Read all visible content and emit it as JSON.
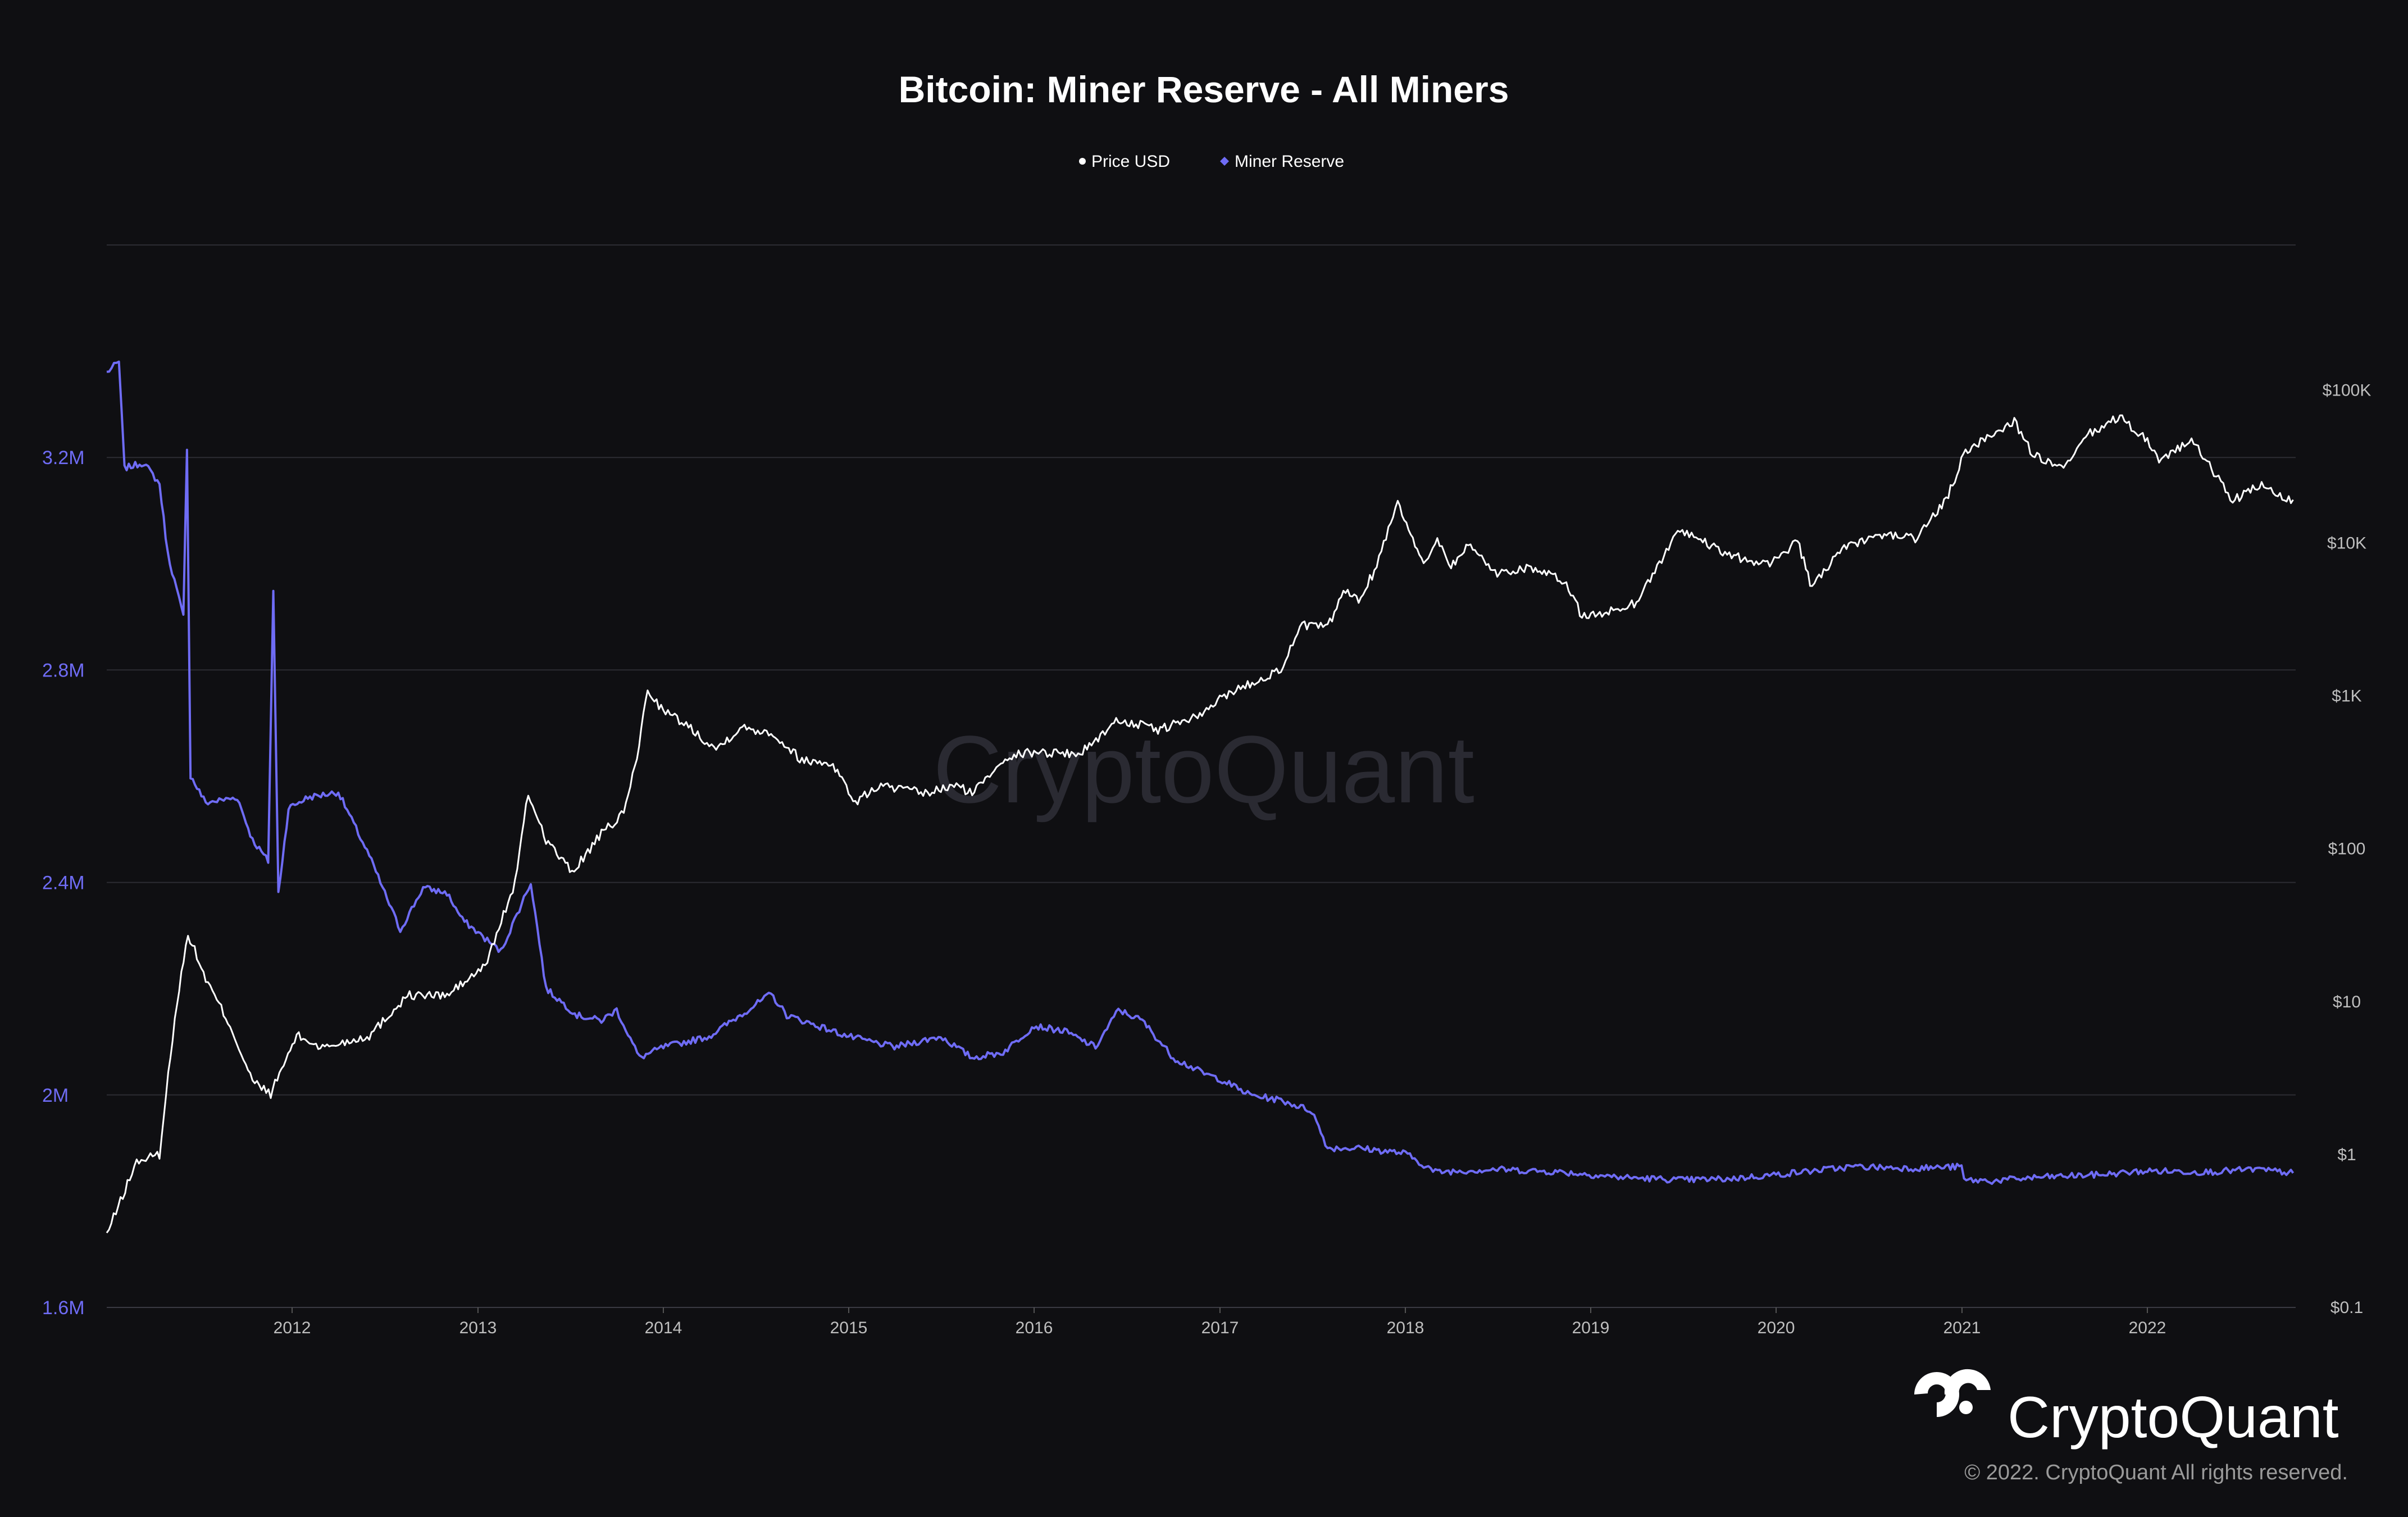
{
  "chart_data": {
    "type": "line",
    "title": "Bitcoin: Miner Reserve - All Miners",
    "legend": {
      "placement": "top-center"
    },
    "series": [
      {
        "name": "Price USD",
        "color": "#ffffff",
        "axis": "right",
        "scale": "log",
        "points": [
          [
            "2011-01-01",
            0.3
          ],
          [
            "2011-03-01",
            0.9
          ],
          [
            "2011-04-15",
            1.0
          ],
          [
            "2011-05-15",
            8
          ],
          [
            "2011-06-10",
            28
          ],
          [
            "2011-07-15",
            14
          ],
          [
            "2011-09-01",
            7
          ],
          [
            "2011-10-15",
            3
          ],
          [
            "2011-11-20",
            2.5
          ],
          [
            "2012-01-10",
            6
          ],
          [
            "2012-03-01",
            5
          ],
          [
            "2012-06-01",
            6
          ],
          [
            "2012-08-15",
            11
          ],
          [
            "2012-11-01",
            11
          ],
          [
            "2013-01-15",
            17
          ],
          [
            "2013-03-15",
            60
          ],
          [
            "2013-04-10",
            230
          ],
          [
            "2013-05-15",
            115
          ],
          [
            "2013-07-05",
            70
          ],
          [
            "2013-09-01",
            125
          ],
          [
            "2013-10-15",
            170
          ],
          [
            "2013-11-10",
            400
          ],
          [
            "2013-12-01",
            1100
          ],
          [
            "2014-01-01",
            800
          ],
          [
            "2014-02-15",
            650
          ],
          [
            "2014-04-15",
            450
          ],
          [
            "2014-06-01",
            620
          ],
          [
            "2014-08-01",
            580
          ],
          [
            "2014-10-01",
            380
          ],
          [
            "2014-12-01",
            360
          ],
          [
            "2015-01-14",
            200
          ],
          [
            "2015-03-01",
            260
          ],
          [
            "2015-06-01",
            230
          ],
          [
            "2015-08-01",
            260
          ],
          [
            "2015-09-01",
            230
          ],
          [
            "2015-11-05",
            400
          ],
          [
            "2016-01-01",
            430
          ],
          [
            "2016-04-01",
            420
          ],
          [
            "2016-06-15",
            700
          ],
          [
            "2016-09-01",
            600
          ],
          [
            "2016-12-01",
            760
          ],
          [
            "2017-01-05",
            1000
          ],
          [
            "2017-03-01",
            1200
          ],
          [
            "2017-05-01",
            1500
          ],
          [
            "2017-06-12",
            2900
          ],
          [
            "2017-08-01",
            2800
          ],
          [
            "2017-09-01",
            4800
          ],
          [
            "2017-10-01",
            4300
          ],
          [
            "2017-11-01",
            6500
          ],
          [
            "2017-12-17",
            19000
          ],
          [
            "2018-02-06",
            7000
          ],
          [
            "2018-03-05",
            11000
          ],
          [
            "2018-04-01",
            7000
          ],
          [
            "2018-05-05",
            9800
          ],
          [
            "2018-07-01",
            6300
          ],
          [
            "2018-09-01",
            7000
          ],
          [
            "2018-11-14",
            5500
          ],
          [
            "2018-12-15",
            3300
          ],
          [
            "2019-02-01",
            3500
          ],
          [
            "2019-04-01",
            4100
          ],
          [
            "2019-06-26",
            12500
          ],
          [
            "2019-08-01",
            10500
          ],
          [
            "2019-10-01",
            8300
          ],
          [
            "2019-12-15",
            7200
          ],
          [
            "2020-02-12",
            10300
          ],
          [
            "2020-03-12",
            5000
          ],
          [
            "2020-05-01",
            8800
          ],
          [
            "2020-08-01",
            11500
          ],
          [
            "2020-10-01",
            10700
          ],
          [
            "2020-12-01",
            19000
          ],
          [
            "2021-01-08",
            40000
          ],
          [
            "2021-02-15",
            48000
          ],
          [
            "2021-04-14",
            63000
          ],
          [
            "2021-05-20",
            38000
          ],
          [
            "2021-07-20",
            30000
          ],
          [
            "2021-09-06",
            51000
          ],
          [
            "2021-11-08",
            67000
          ],
          [
            "2022-01-01",
            47000
          ],
          [
            "2022-01-24",
            35000
          ],
          [
            "2022-03-29",
            47000
          ],
          [
            "2022-05-12",
            29000
          ],
          [
            "2022-06-18",
            19000
          ],
          [
            "2022-08-14",
            24000
          ],
          [
            "2022-09-15",
            20000
          ],
          [
            "2022-10-15",
            19200
          ]
        ]
      },
      {
        "name": "Miner Reserve",
        "color": "#6f6cf5",
        "axis": "left",
        "scale": "linear",
        "points": [
          [
            "2011-01-01",
            3360000
          ],
          [
            "2011-01-25",
            3380000
          ],
          [
            "2011-02-05",
            3180000
          ],
          [
            "2011-03-15",
            3190000
          ],
          [
            "2011-04-15",
            3150000
          ],
          [
            "2011-05-01",
            3020000
          ],
          [
            "2011-06-01",
            2900000
          ],
          [
            "2011-06-08",
            3220000
          ],
          [
            "2011-06-15",
            2600000
          ],
          [
            "2011-07-15",
            2550000
          ],
          [
            "2011-09-15",
            2560000
          ],
          [
            "2011-10-15",
            2480000
          ],
          [
            "2011-11-15",
            2440000
          ],
          [
            "2011-11-25",
            2950000
          ],
          [
            "2011-12-05",
            2380000
          ],
          [
            "2011-12-25",
            2540000
          ],
          [
            "2012-02-01",
            2560000
          ],
          [
            "2012-04-01",
            2570000
          ],
          [
            "2012-06-01",
            2450000
          ],
          [
            "2012-08-01",
            2310000
          ],
          [
            "2012-09-15",
            2390000
          ],
          [
            "2012-11-01",
            2380000
          ],
          [
            "2012-12-01",
            2330000
          ],
          [
            "2013-02-15",
            2270000
          ],
          [
            "2013-04-15",
            2400000
          ],
          [
            "2013-05-15",
            2200000
          ],
          [
            "2013-07-15",
            2150000
          ],
          [
            "2013-09-01",
            2140000
          ],
          [
            "2013-10-01",
            2160000
          ],
          [
            "2013-11-15",
            2070000
          ],
          [
            "2014-01-01",
            2090000
          ],
          [
            "2014-04-01",
            2110000
          ],
          [
            "2014-06-01",
            2150000
          ],
          [
            "2014-08-01",
            2190000
          ],
          [
            "2014-09-01",
            2150000
          ],
          [
            "2014-11-01",
            2130000
          ],
          [
            "2015-01-01",
            2110000
          ],
          [
            "2015-04-01",
            2090000
          ],
          [
            "2015-07-01",
            2110000
          ],
          [
            "2015-09-01",
            2070000
          ],
          [
            "2015-11-01",
            2080000
          ],
          [
            "2016-01-01",
            2130000
          ],
          [
            "2016-03-01",
            2120000
          ],
          [
            "2016-05-01",
            2090000
          ],
          [
            "2016-06-15",
            2160000
          ],
          [
            "2016-08-01",
            2140000
          ],
          [
            "2016-10-01",
            2070000
          ],
          [
            "2016-12-01",
            2040000
          ],
          [
            "2017-01-01",
            2030000
          ],
          [
            "2017-03-01",
            2000000
          ],
          [
            "2017-05-01",
            1990000
          ],
          [
            "2017-07-01",
            1970000
          ],
          [
            "2017-08-01",
            1900000
          ],
          [
            "2017-10-01",
            1900000
          ],
          [
            "2018-01-01",
            1890000
          ],
          [
            "2018-03-01",
            1855000
          ],
          [
            "2018-07-01",
            1860000
          ],
          [
            "2018-11-01",
            1855000
          ],
          [
            "2019-03-01",
            1845000
          ],
          [
            "2019-07-01",
            1840000
          ],
          [
            "2019-10-01",
            1842000
          ],
          [
            "2020-01-01",
            1850000
          ],
          [
            "2020-06-01",
            1865000
          ],
          [
            "2020-10-01",
            1862000
          ],
          [
            "2020-12-31",
            1865000
          ],
          [
            "2021-01-05",
            1840000
          ],
          [
            "2021-03-01",
            1838000
          ],
          [
            "2021-06-01",
            1845000
          ],
          [
            "2021-10-01",
            1850000
          ],
          [
            "2022-01-01",
            1857000
          ],
          [
            "2022-05-01",
            1855000
          ],
          [
            "2022-08-01",
            1860000
          ],
          [
            "2022-10-15",
            1853000
          ]
        ]
      }
    ],
    "y_left": {
      "ticks": [
        "3.2M",
        "2.8M",
        "2.4M",
        "2M",
        "1.6M"
      ],
      "tick_values": [
        3200000,
        2800000,
        2400000,
        2000000,
        1600000
      ],
      "range": [
        1600000,
        3600000
      ]
    },
    "y_right": {
      "scale": "log",
      "ticks": [
        "$100K",
        "$10K",
        "$1K",
        "$100",
        "$10",
        "$1",
        "$0.1"
      ],
      "tick_values": [
        100000,
        10000,
        1000,
        100,
        10,
        1,
        0.1
      ]
    },
    "x": {
      "range": [
        "2011-01-01",
        "2022-10-20"
      ],
      "ticks": [
        "2012",
        "2013",
        "2014",
        "2015",
        "2016",
        "2017",
        "2018",
        "2019",
        "2020",
        "2021",
        "2022"
      ]
    },
    "grid": true
  },
  "watermark": "CryptoQuant",
  "brand": {
    "name": "CryptoQuant",
    "copyright": "© 2022. CryptoQuant All rights reserved."
  }
}
